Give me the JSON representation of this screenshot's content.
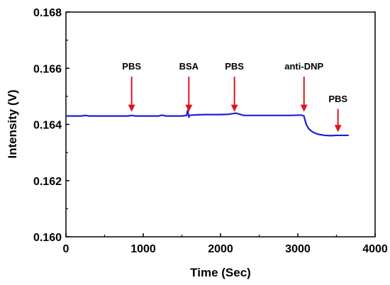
{
  "chart_data": {
    "type": "line",
    "title": "",
    "xlabel": "Time (Sec)",
    "ylabel": "Intensity (V)",
    "xlim": [
      0,
      4000
    ],
    "ylim": [
      0.16,
      0.168
    ],
    "xticks": [
      0,
      1000,
      2000,
      3000,
      4000
    ],
    "xtick_labels": [
      "0",
      "1000",
      "2000",
      "3000",
      "4000"
    ],
    "yticks": [
      0.16,
      0.162,
      0.164,
      0.166,
      0.168
    ],
    "ytick_labels": [
      "0.160",
      "0.162",
      "0.164",
      "0.166",
      "0.168"
    ],
    "grid": false,
    "legend": "none",
    "line_color": "#1f1fd6",
    "arrow_color": "#e0141e",
    "series": [
      {
        "x": [
          0,
          100,
          200,
          250,
          300,
          400,
          500,
          600,
          700,
          800,
          850,
          900,
          1000,
          1100,
          1200,
          1240,
          1300,
          1400,
          1500,
          1560,
          1575,
          1590,
          1600,
          1620,
          1700,
          1800,
          1900,
          2000,
          2100,
          2150,
          2200,
          2250,
          2300,
          2400,
          2500,
          2600,
          2700,
          2800,
          2900,
          3000,
          3050,
          3080,
          3090,
          3110,
          3140,
          3180,
          3230,
          3280,
          3350,
          3420,
          3500,
          3550,
          3650
        ],
        "y": [
          0.1643,
          0.1643,
          0.1643,
          0.16432,
          0.1643,
          0.1643,
          0.1643,
          0.1643,
          0.1643,
          0.1643,
          0.16432,
          0.1643,
          0.1643,
          0.1643,
          0.1643,
          0.16433,
          0.1643,
          0.1643,
          0.1643,
          0.16432,
          0.1645,
          0.16426,
          0.16432,
          0.16433,
          0.16434,
          0.16435,
          0.16435,
          0.16435,
          0.16436,
          0.16438,
          0.1644,
          0.16436,
          0.16432,
          0.16432,
          0.16432,
          0.16432,
          0.16432,
          0.16432,
          0.16432,
          0.16433,
          0.16433,
          0.1643,
          0.16418,
          0.164,
          0.16385,
          0.16375,
          0.16368,
          0.16364,
          0.16361,
          0.1636,
          0.16361,
          0.16361,
          0.16361
        ]
      }
    ],
    "annotations": [
      {
        "text": "PBS",
        "x": 850,
        "arrow_top": 0.1657,
        "arrow_bottom": 0.16445,
        "text_y": 0.16595
      },
      {
        "text": "BSA",
        "x": 1590,
        "arrow_top": 0.1657,
        "arrow_bottom": 0.16445,
        "text_y": 0.16595
      },
      {
        "text": "PBS",
        "x": 2180,
        "arrow_top": 0.1657,
        "arrow_bottom": 0.16445,
        "text_y": 0.16595
      },
      {
        "text": "anti-DNP",
        "x": 3080,
        "arrow_top": 0.1657,
        "arrow_bottom": 0.16445,
        "text_y": 0.16595
      },
      {
        "text": "PBS",
        "x": 3520,
        "arrow_top": 0.16455,
        "arrow_bottom": 0.16373,
        "text_y": 0.1648
      }
    ]
  }
}
